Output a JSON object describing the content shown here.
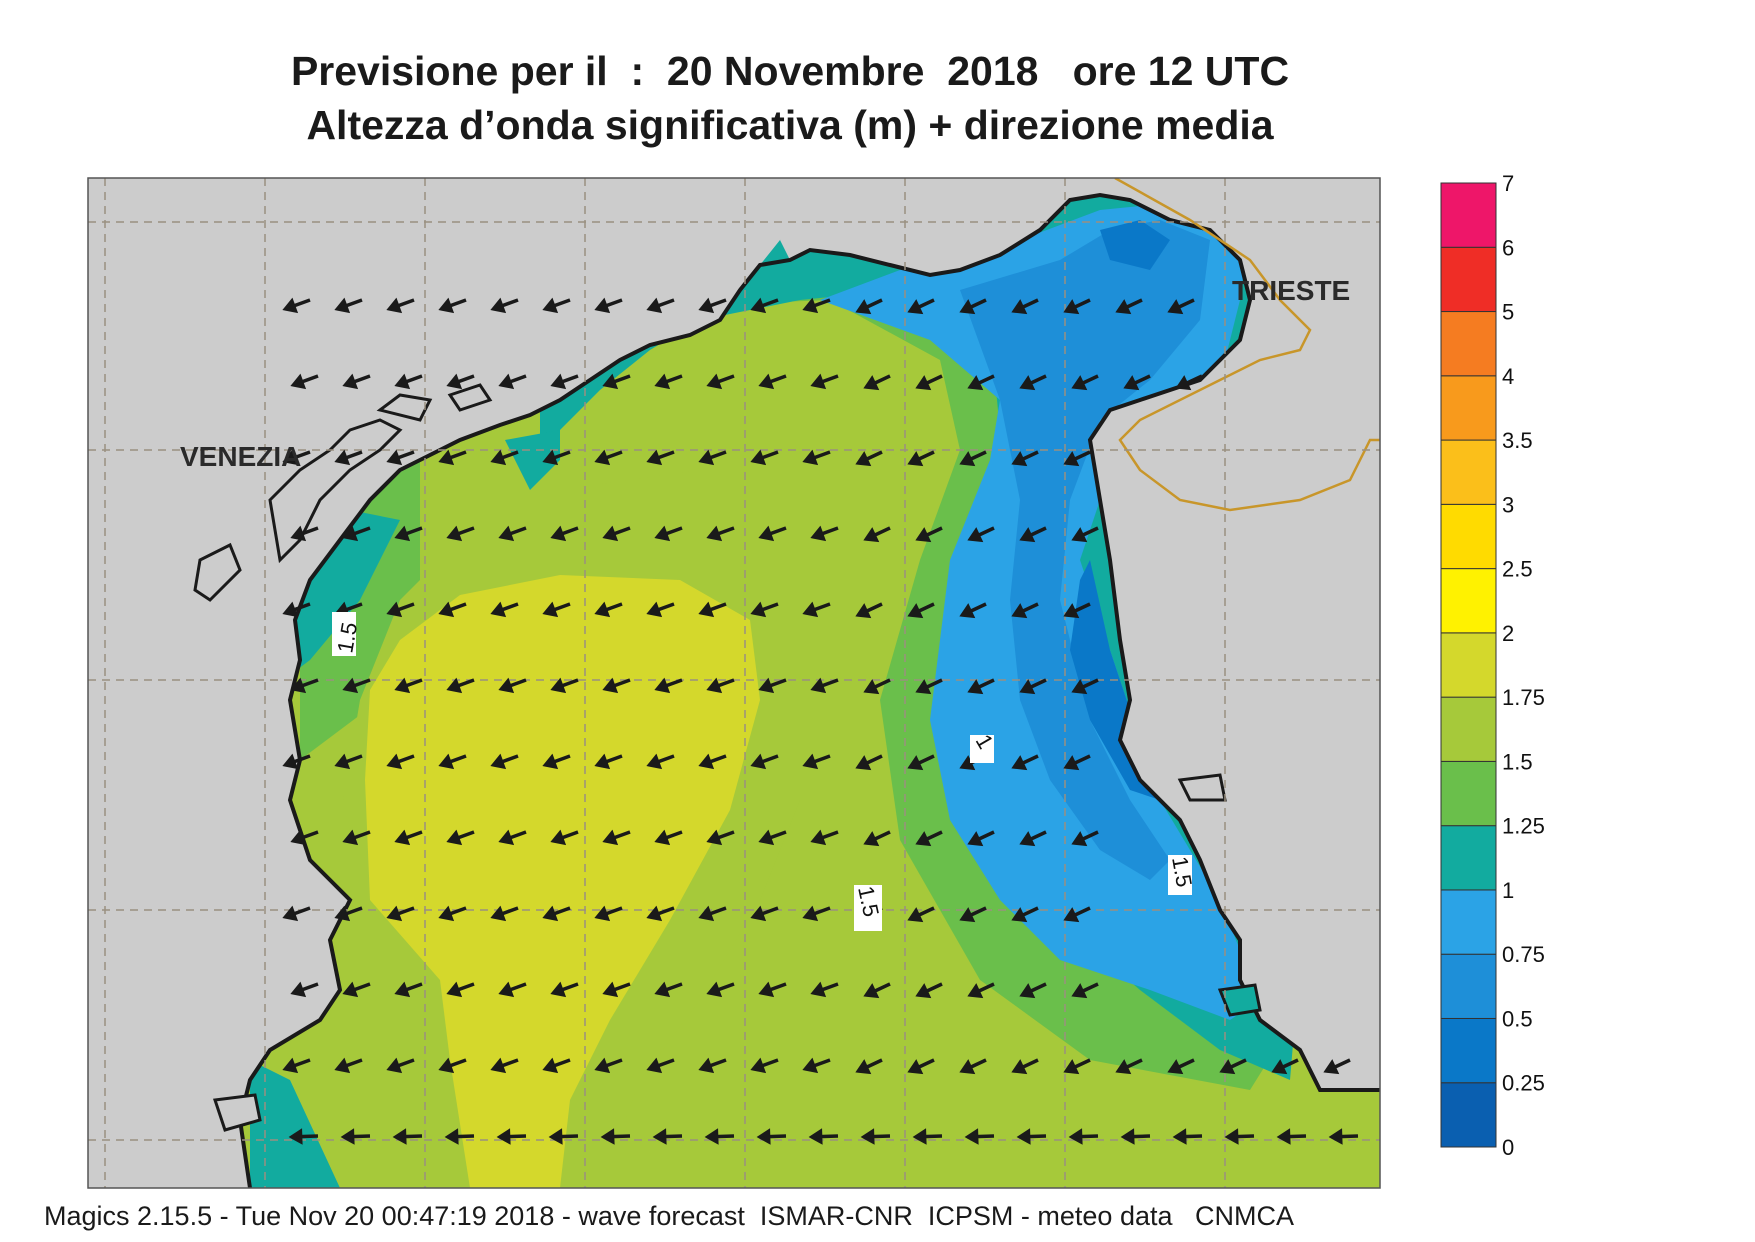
{
  "title_line1": "Previsione per il  :  20 Novembre  2018   ore 12 UTC",
  "title_line2": "Altezza d’onda significativa (m) + direzione media",
  "footer": "Magics 2.15.5 - Tue Nov 20 00:47:19 2018 - wave forecast  ISMAR-CNR  ICPSM - meteo data   CNMCA",
  "cities": [
    {
      "name": "VENEZIA"
    },
    {
      "name": "TRIESTE"
    }
  ],
  "contour_labels": [
    "1.5",
    "1",
    "1.5",
    "1.5"
  ],
  "colorbar": {
    "levels": [
      "0",
      "0.25",
      "0.5",
      "0.75",
      "1",
      "1.25",
      "1.5",
      "1.75",
      "2",
      "2.5",
      "3",
      "3.5",
      "4",
      "5",
      "6",
      "7"
    ],
    "colors": [
      "#0a5fb0",
      "#0a78c8",
      "#1e8fd8",
      "#2ba3e6",
      "#12ab9f",
      "#6abf4b",
      "#a6c93a",
      "#d4d82c",
      "#fff200",
      "#ffdb00",
      "#fbbf1a",
      "#f89a1c",
      "#f57c21",
      "#ef2d26",
      "#ee1669"
    ]
  },
  "colors": {
    "land": "#cccccc",
    "coast": "#1a1a1a",
    "border": "#c8962a",
    "grid": "#9a9080"
  },
  "wind_direction": "from east-north-east (arrows pointing south-west/west)"
}
